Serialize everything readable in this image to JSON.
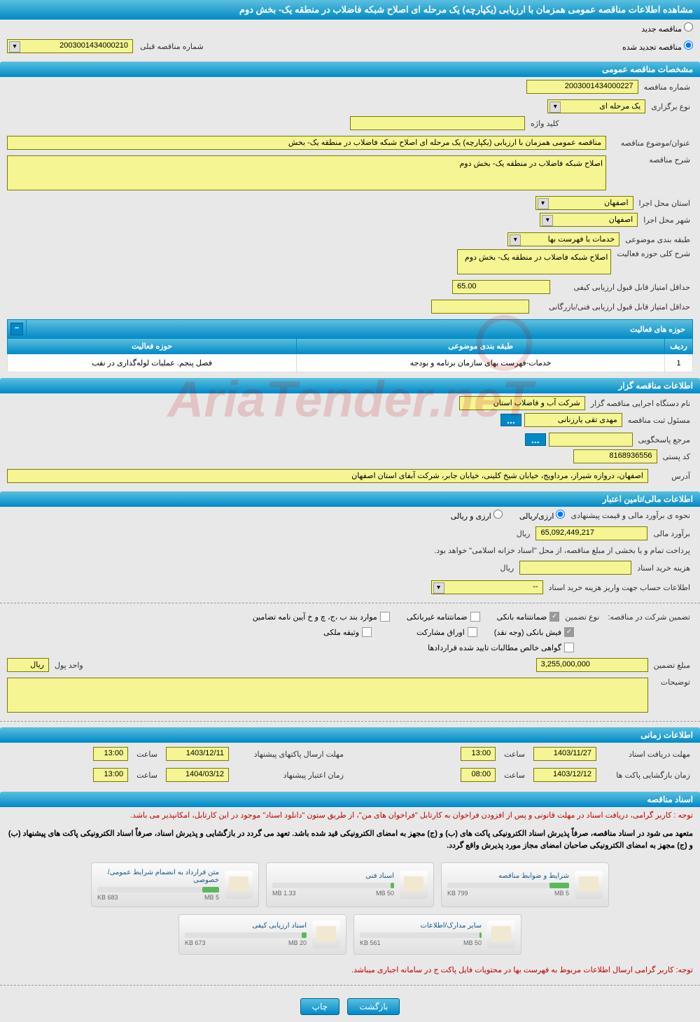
{
  "header": {
    "title": "مشاهده اطلاعات مناقصه عمومی همزمان با ارزیابی (یکپارچه) یک مرحله ای اصلاح شبکه فاضلاب در منطقه یک- بخش دوم"
  },
  "topRadios": {
    "new": "مناقصه جدید",
    "renewed": "مناقصه تجدید شده",
    "prevNumberLabel": "شماره مناقصه قبلی",
    "prevNumber": "2003001434000210"
  },
  "sections": {
    "general": "مشخصات مناقصه عمومی",
    "activity": "حوزه های فعالیت",
    "holder": "اطلاعات مناقصه گزار",
    "financial": "اطلاعات مالی/تامین اعتبار",
    "time": "اطلاعات زمانی",
    "documents": "اسناد مناقصه"
  },
  "general": {
    "tenderNumberLabel": "شماره مناقصه",
    "tenderNumber": "2003001434000227",
    "typeLabel": "نوع برگزاری",
    "type": "یک مرحله ای",
    "keywordLabel": "کلید واژه",
    "keyword": "",
    "titleLabel": "عنوان/موضوع مناقصه",
    "title": "مناقصه عمومی همزمان با ارزیابی (یکپارچه) یک مرحله ای اصلاح شبکه فاضلاب در منطقه یک- بخش",
    "descLabel": "شرح مناقصه",
    "desc": "اصلاح شبکه فاضلاب در منطقه یک- بخش دوم",
    "provinceLabel": "استان محل اجرا",
    "province": "اصفهان",
    "cityLabel": "شهر محل اجرا",
    "city": "اصفهان",
    "categoryLabel": "طبقه بندی موضوعی",
    "category": "خدمات با فهرست بها",
    "activityDescLabel": "شرح کلی حوزه فعالیت",
    "activityDesc": "اصلاح شبکه فاضلاب در منطقه یک- بخش دوم",
    "minScoreLabel": "حداقل امتیاز قابل قبول ارزیابی کیفی",
    "minScore": "65.00",
    "minTechScoreLabel": "حداقل امتیاز قابل قبول ارزیابی فنی/بازرگانی",
    "minTechScore": ""
  },
  "activityTable": {
    "headers": {
      "row": "ردیف",
      "category": "طبقه بندی موضوعی",
      "field": "حوزه فعالیت"
    },
    "rows": [
      {
        "num": "1",
        "category": "خدمات-فهرست بهای سازمان برنامه و بودجه",
        "field": "فصل پنجم. عملیات لوله‌گذاری در نقب"
      }
    ]
  },
  "holder": {
    "orgLabel": "نام دستگاه اجرایی مناقصه گزار",
    "org": "شرکت آب و فاضلاب استان",
    "managerLabel": "مسئول ثبت مناقصه",
    "manager": "مهدی تقی یارزنانی",
    "contactLabel": "مرجع پاسخگویی",
    "contact": "",
    "postalLabel": "کد پستی",
    "postal": "8168936556",
    "addressLabel": "آدرس",
    "address": "اصفهان، دروازه شیراز، مرداویج، خیابان شیخ کلینی، خیابان جابر، شرکت آبفای استان اصفهان"
  },
  "financial": {
    "estimateLabel": "نحوه ی برآورد مالی و قیمت پیشنهادی",
    "currencyOpt1": "ارزی/ریالی",
    "currencyOpt2": "ارزی و ریالی",
    "amountLabel": "برآورد مالی",
    "amount": "65,092,449,217",
    "unit": "ریال",
    "paymentNote": "پرداخت تمام و یا بخشی از مبلغ مناقصه، از محل \"اسناد خزانه اسلامی\" خواهد بود.",
    "docPurchaseLabel": "هزینه خرید اسناد",
    "docPurchase": "",
    "docPurchaseUnit": "ریال",
    "accountLabel": "اطلاعات حساب جهت واریز هزینه خرید اسناد",
    "account": "--",
    "guaranteeLabel": "تضمین شرکت در مناقصه:",
    "guaranteeTypeLabel": "نوع تضمین",
    "checkboxes": {
      "bankGuarantee": "ضمانتنامه بانکی",
      "nonBankGuarantee": "ضمانتنامه غیربانکی",
      "clauses": "موارد بند ب ،ج، چ و خ آیین نامه تضامین",
      "cash": "فیش بانکی (وجه نقد)",
      "bonds": "اوراق مشارکت",
      "property": "وثیقه ملکی",
      "certificate": "گواهی خالص مطالبات تایید شده قراردادها"
    },
    "guaranteeAmountLabel": "مبلغ تضمین",
    "guaranteeAmount": "3,255,000,000",
    "money_unit_label": "واحد پول",
    "money_unit": "ریال",
    "notesLabel": "توضیحات",
    "notes": ""
  },
  "time": {
    "docDeadlineLabel": "مهلت دریافت اسناد",
    "docDeadline": "1403/11/27",
    "docDeadlineTime": "13:00",
    "packetDeadlineLabel": "مهلت ارسال پاکتهای پیشنهاد",
    "packetDeadline": "1403/12/11",
    "packetDeadlineTime": "13:00",
    "openingLabel": "زمان بازگشایی پاکت ها",
    "opening": "1403/12/12",
    "openingTime": "08:00",
    "validityLabel": "زمان اعتبار پیشنهاد",
    "validity": "1404/03/12",
    "validityTime": "13:00",
    "timeLabel": "ساعت"
  },
  "documents": {
    "notice1": "توجه : کاربر گرامی، دریافت اسناد در مهلت قانونی و پس از افزودن فراخوان به کارتابل \"فراخوان های من\"، از طریق ستون \"دانلود اسناد\" موجود در این کارتابل، امکانپذیر می باشد.",
    "notice2": "متعهد می شود در اسناد مناقصه، صرفاً پذیرش اسناد الکترونیکی پاکت های (ب) و (ج) مجهز به امضای الکترونیکی قید شده باشد. تعهد می گردد در بازگشایی و پذیرش اسناد، صرفاً اسناد الکترونیکی پاکت های پیشنهاد (ب) و (ج) مجهز به امضای الکترونیکی صاحبان امضای مجاز مورد پذیرش واقع گردد.",
    "docs": [
      {
        "title": "شرایط و ضوابط مناقصه",
        "used": "799 KB",
        "total": "5 MB",
        "pct": 16
      },
      {
        "title": "اسناد فنی",
        "used": "1.33 MB",
        "total": "50 MB",
        "pct": 3
      },
      {
        "title": "متن قرارداد به انضمام شرایط عمومی/خصوصی",
        "used": "683 KB",
        "total": "5 MB",
        "pct": 14
      },
      {
        "title": "سایر مدارک/اطلاعات",
        "used": "561 KB",
        "total": "50 MB",
        "pct": 2
      },
      {
        "title": "اسناد ارزیابی کیفی",
        "used": "673 KB",
        "total": "20 MB",
        "pct": 4
      }
    ],
    "notice3": "توجه: کاربر گرامی ارسال اطلاعات مربوط به فهرست بها در محتویات فایل پاکت ج در سامانه اجباری میباشد."
  },
  "buttons": {
    "back": "بازگشت",
    "print": "چاپ"
  },
  "colors": {
    "headerGradStart": "#5bc0de",
    "headerGradEnd": "#0089c7",
    "fieldBg": "#f5f594",
    "fieldBorder": "#7a7a00",
    "bodyBg": "#e8e8e8",
    "noticeRed": "#c10000"
  }
}
